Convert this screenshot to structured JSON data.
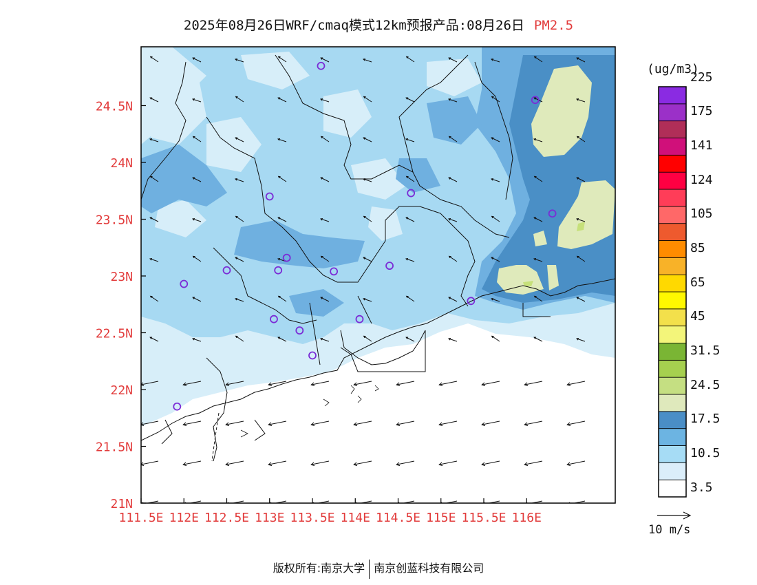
{
  "title": {
    "main": "2025年08月26日WRF/cmaq模式12km预报产品:08月26日",
    "species": "PM2.5"
  },
  "colors": {
    "axis_label": "#e23b3b",
    "land_fill": [
      "#ffffff",
      "#d7eef9",
      "#a7d9f2",
      "#6fb0e0",
      "#4a8fc6",
      "#dfeabb",
      "#c6e07a"
    ]
  },
  "axes": {
    "lat_labels": [
      "24.5N",
      "24N",
      "23.5N",
      "23N",
      "22.5N",
      "22N",
      "21.5N",
      "21N"
    ],
    "lon_labels": [
      "111.5E",
      "112E",
      "112.5E",
      "113E",
      "113.5E",
      "114E",
      "114.5E",
      "115E",
      "115.5E",
      "116E"
    ],
    "lat_range": [
      21,
      25
    ],
    "lon_range": [
      111.5,
      116.5
    ]
  },
  "colorbar": {
    "unit": "(ug/m3)",
    "colors": [
      "#ffffff",
      "#dbeefa",
      "#a6dcf5",
      "#6cb4e2",
      "#4a8ec6",
      "#dfe9bc",
      "#c5df82",
      "#a6d04f",
      "#7ab534",
      "#f3f57a",
      "#f3e04b",
      "#fff800",
      "#ffd900",
      "#f8b228",
      "#ff8c00",
      "#ee5a2e",
      "#ff6868",
      "#ff3d58",
      "#ff0042",
      "#ff0000",
      "#d0107a",
      "#b02e58",
      "#9b30c8",
      "#8a2be2"
    ],
    "labels": [
      "3.5",
      "10.5",
      "17.5",
      "24.5",
      "31.5",
      "45",
      "65",
      "85",
      "105",
      "124",
      "141",
      "175",
      "225"
    ]
  },
  "wind_reference": {
    "label": "10 m/s"
  },
  "stations": [
    {
      "lon": 113.6,
      "lat": 24.85
    },
    {
      "lon": 116.1,
      "lat": 24.55
    },
    {
      "lon": 113.0,
      "lat": 23.7
    },
    {
      "lon": 114.65,
      "lat": 23.73
    },
    {
      "lon": 116.3,
      "lat": 23.55
    },
    {
      "lon": 112.5,
      "lat": 23.05
    },
    {
      "lon": 113.1,
      "lat": 23.05
    },
    {
      "lon": 113.2,
      "lat": 23.16
    },
    {
      "lon": 113.75,
      "lat": 23.04
    },
    {
      "lon": 114.4,
      "lat": 23.09
    },
    {
      "lon": 112.0,
      "lat": 22.93
    },
    {
      "lon": 113.05,
      "lat": 22.62
    },
    {
      "lon": 113.35,
      "lat": 22.52
    },
    {
      "lon": 114.05,
      "lat": 22.62
    },
    {
      "lon": 113.5,
      "lat": 22.3
    },
    {
      "lon": 115.35,
      "lat": 22.78
    },
    {
      "lon": 111.92,
      "lat": 21.85
    }
  ],
  "footer": {
    "left": "版权所有:南京大学",
    "right": "南京创蓝科技有限公司"
  }
}
